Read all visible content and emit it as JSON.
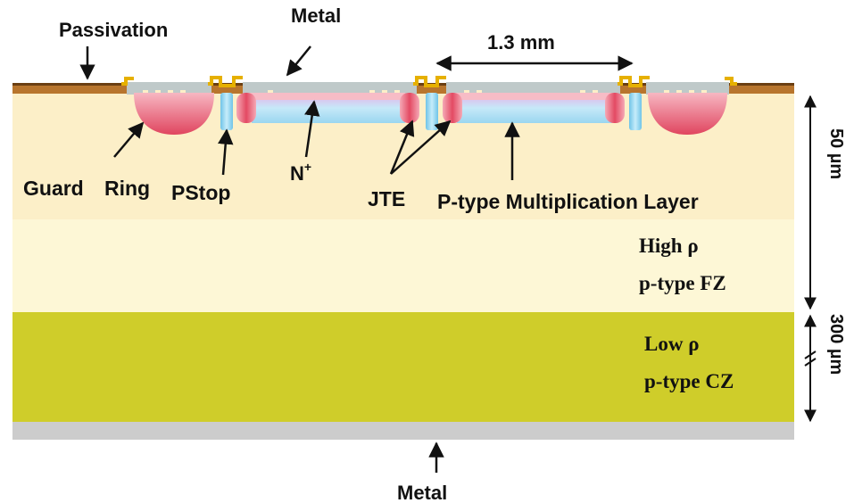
{
  "labels": {
    "passivation": "Passivation",
    "metal_top": "Metal",
    "dimension": "1.3 mm",
    "guard_ring_a": "Guard",
    "guard_ring_b": "Ring",
    "pstop": "PStop",
    "nplus_base": "N",
    "nplus_sup": "+",
    "jte": "JTE",
    "p_mult": "P-type Multiplication Layer",
    "thickness_top": "50 µm",
    "thickness_bottom": "300 µm",
    "fz_line1": "High ρ",
    "fz_line2": "p-type FZ",
    "cz_line1": "Low ρ",
    "cz_line2": "p-type CZ",
    "metal_bottom": "Metal"
  },
  "colors": {
    "cz_layer": "#cfcd2a",
    "fz_layer": "#fdf7d6",
    "epi_layer": "#fcefc8",
    "passivation": "#b8752d",
    "metal": "#bfc9c9",
    "gold_contact": "#e6b000",
    "implant_red": "#e85a73",
    "n_plus": "#f7bcc6",
    "p_layer": "#b9e3f4",
    "bottom_metal": "#cccccc"
  }
}
